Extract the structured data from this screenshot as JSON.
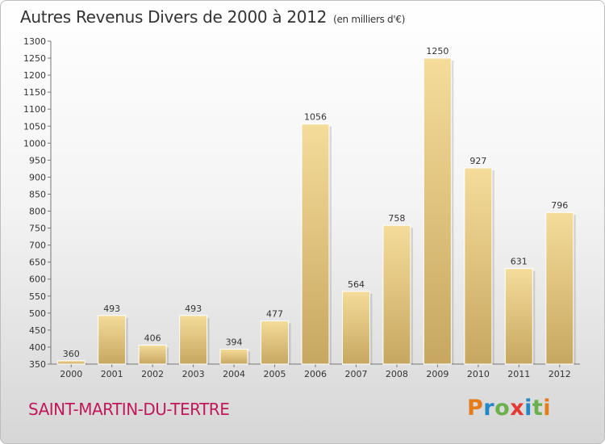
{
  "header": {
    "title": "Autres Revenus Divers de 2000 à 2012",
    "subtitle": "(en milliers d'€)"
  },
  "footer": {
    "commune": "SAINT-MARTIN-DU-TERTRE",
    "logo": "Proxiti"
  },
  "colors": {
    "bar_light": "#f5dc9a",
    "bar_dark": "#c7a760",
    "commune": "#c2185b",
    "logo_letters": [
      "#e57c1c",
      "#1e88c8",
      "#6ab04c",
      "#e53935",
      "#1e88c8",
      "#6ab04c",
      "#e57c1c"
    ]
  },
  "chart_data": {
    "type": "bar",
    "title": "Autres Revenus Divers de 2000 à 2012",
    "subtitle": "(en milliers d'€)",
    "categories": [
      "2000",
      "2001",
      "2002",
      "2003",
      "2004",
      "2005",
      "2006",
      "2007",
      "2008",
      "2009",
      "2010",
      "2011",
      "2012"
    ],
    "values": [
      360,
      493,
      406,
      493,
      394,
      477,
      1056,
      564,
      758,
      1250,
      927,
      631,
      796
    ],
    "ylim": [
      350,
      1300
    ],
    "ytick_step": 50,
    "grid": false,
    "legend": "none"
  }
}
